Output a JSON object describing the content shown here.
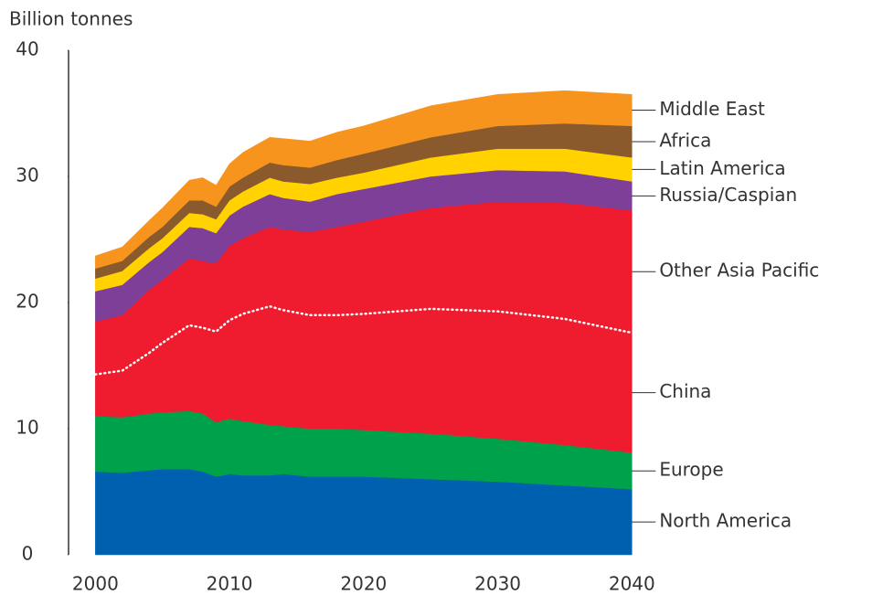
{
  "chart_data": {
    "type": "stacked_area",
    "y_axis_label": "Billion tonnes",
    "x": [
      2000,
      2002,
      2004,
      2005,
      2007,
      2008,
      2009,
      2010,
      2011,
      2013,
      2014,
      2016,
      2018,
      2020,
      2025,
      2030,
      2035,
      2040
    ],
    "xlim": [
      1998,
      2041
    ],
    "xticks": [
      2000,
      2010,
      2020,
      2030,
      2040
    ],
    "ylim": [
      0,
      40
    ],
    "yticks": [
      0,
      10,
      20,
      30,
      40
    ],
    "grid": false,
    "series": [
      {
        "name": "North America",
        "color": "#0060b0",
        "values": [
          6.6,
          6.5,
          6.7,
          6.8,
          6.8,
          6.6,
          6.2,
          6.4,
          6.3,
          6.3,
          6.4,
          6.2,
          6.2,
          6.2,
          6.0,
          5.8,
          5.5,
          5.2
        ]
      },
      {
        "name": "Europe",
        "color": "#00a14b",
        "values": [
          4.4,
          4.4,
          4.5,
          4.5,
          4.6,
          4.6,
          4.3,
          4.4,
          4.3,
          4.0,
          3.8,
          3.8,
          3.8,
          3.7,
          3.6,
          3.4,
          3.2,
          2.9
        ]
      },
      {
        "name": "China",
        "color": "#ee1c2e",
        "values": [
          3.3,
          3.7,
          4.8,
          5.5,
          6.8,
          6.8,
          7.2,
          7.8,
          8.5,
          9.4,
          9.2,
          9.0,
          9.0,
          9.2,
          9.9,
          10.1,
          10.0,
          9.5
        ]
      },
      {
        "name": "Other Asia Pacific",
        "color": "#ee1c2e",
        "values": [
          4.2,
          4.4,
          5.0,
          5.0,
          5.3,
          5.3,
          5.4,
          5.9,
          6.0,
          6.3,
          6.4,
          6.6,
          7.0,
          7.3,
          8.0,
          8.7,
          9.2,
          9.7
        ]
      },
      {
        "name": "Russia/Caspian",
        "color": "#7d3f98",
        "values": [
          2.4,
          2.4,
          2.2,
          2.2,
          2.5,
          2.6,
          2.4,
          2.4,
          2.5,
          2.6,
          2.5,
          2.4,
          2.6,
          2.6,
          2.5,
          2.5,
          2.5,
          2.3
        ]
      },
      {
        "name": "Latin America",
        "color": "#ffd200",
        "values": [
          1.0,
          1.1,
          1.1,
          1.1,
          1.1,
          1.1,
          1.1,
          1.2,
          1.2,
          1.3,
          1.3,
          1.4,
          1.3,
          1.3,
          1.5,
          1.7,
          1.8,
          1.9
        ]
      },
      {
        "name": "Africa",
        "color": "#8a5a2c",
        "values": [
          0.8,
          0.8,
          0.9,
          0.9,
          1.0,
          1.1,
          1.0,
          1.1,
          1.1,
          1.2,
          1.3,
          1.3,
          1.4,
          1.5,
          1.6,
          1.8,
          2.0,
          2.5
        ]
      },
      {
        "name": "Middle East",
        "color": "#f7941d",
        "values": [
          1.0,
          1.1,
          1.3,
          1.5,
          1.6,
          1.8,
          1.7,
          1.8,
          2.0,
          2.0,
          2.1,
          2.1,
          2.2,
          2.2,
          2.5,
          2.5,
          2.6,
          2.5
        ]
      }
    ]
  }
}
